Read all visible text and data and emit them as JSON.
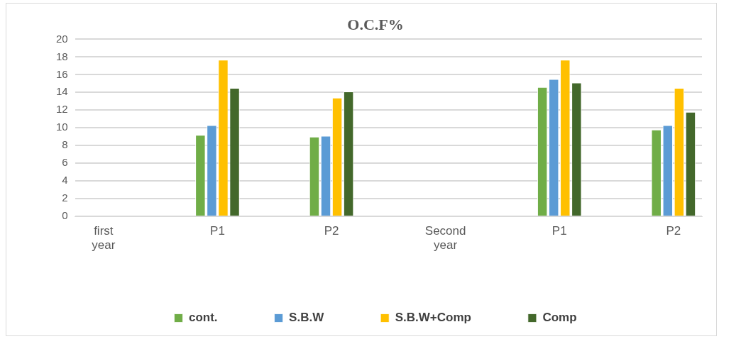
{
  "chart_data": {
    "type": "bar",
    "title": "O.C.F%",
    "categories": [
      "first year",
      null,
      "P1",
      null,
      "P2",
      null,
      "Second year",
      null,
      "P1",
      null,
      "P2"
    ],
    "series": [
      {
        "name": "cont.",
        "color": "#70ad47",
        "values": [
          null,
          null,
          9.2,
          null,
          9.0,
          null,
          null,
          null,
          14.6,
          null,
          9.8
        ]
      },
      {
        "name": "S.B.W",
        "color": "#5b9bd5",
        "values": [
          null,
          null,
          10.3,
          null,
          9.1,
          null,
          null,
          null,
          15.5,
          null,
          10.3
        ]
      },
      {
        "name": "S.B.W+Comp",
        "color": "#ffc000",
        "values": [
          null,
          null,
          17.7,
          null,
          13.4,
          null,
          null,
          null,
          17.7,
          null,
          14.5
        ]
      },
      {
        "name": "Comp",
        "color": "#43682b",
        "values": [
          null,
          null,
          14.5,
          null,
          14.1,
          null,
          null,
          null,
          15.1,
          null,
          11.8
        ]
      }
    ],
    "ylim": [
      0,
      20
    ],
    "yticks": [
      0,
      2,
      4,
      6,
      8,
      10,
      12,
      14,
      16,
      18,
      20
    ],
    "grid": "y",
    "legend": "bottom"
  }
}
